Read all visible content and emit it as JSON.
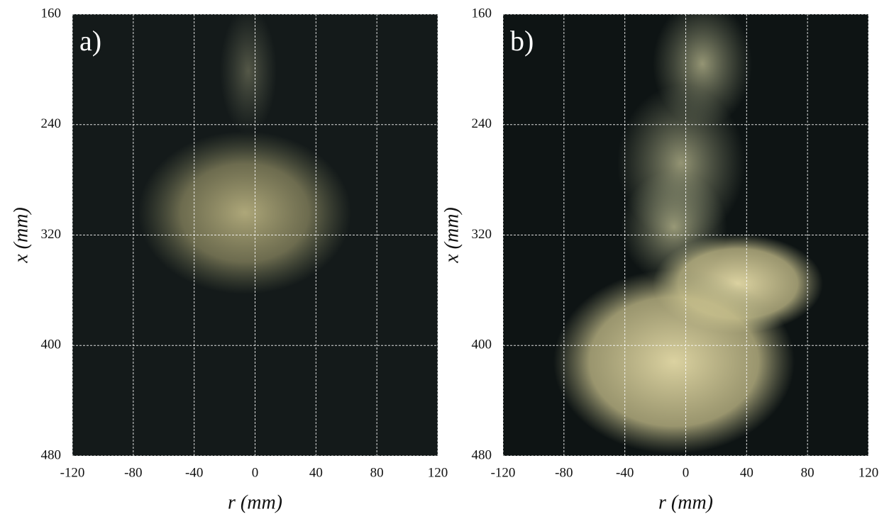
{
  "chart_data": [
    {
      "type": "image",
      "panel_label": "a)",
      "xlabel": "r (mm)",
      "ylabel": "x (mm)",
      "xlim": [
        -120,
        120
      ],
      "ylim": [
        480,
        160
      ],
      "xticks": [
        -120,
        -80,
        -40,
        0,
        40,
        80,
        120
      ],
      "yticks": [
        160,
        240,
        320,
        400,
        480
      ],
      "grid": true
    },
    {
      "type": "image",
      "panel_label": "b)",
      "xlabel": "r (mm)",
      "ylabel": "x (mm)",
      "xlim": [
        -120,
        120
      ],
      "ylim": [
        480,
        160
      ],
      "xticks": [
        -120,
        -80,
        -40,
        0,
        40,
        80,
        120
      ],
      "yticks": [
        160,
        240,
        320,
        400,
        480
      ],
      "grid": true
    }
  ]
}
